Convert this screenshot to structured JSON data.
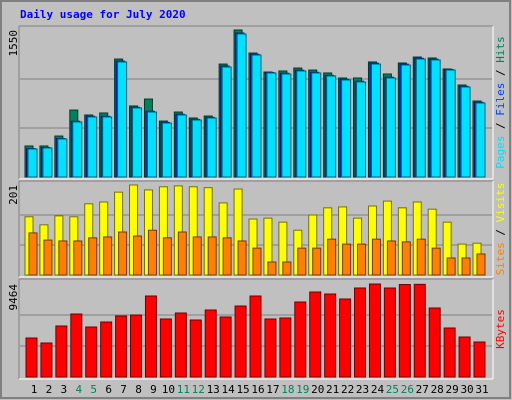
{
  "chart_data": {
    "type": "bar",
    "title": "Daily usage for July 2020",
    "categories": [
      "1",
      "2",
      "3",
      "4",
      "5",
      "6",
      "7",
      "8",
      "9",
      "10",
      "11",
      "12",
      "13",
      "14",
      "15",
      "16",
      "17",
      "18",
      "19",
      "20",
      "21",
      "22",
      "23",
      "24",
      "25",
      "26",
      "27",
      "28",
      "29",
      "30",
      "31"
    ],
    "label_color": "#000000",
    "highlight_color": "#00805c",
    "highlight_indices": [
      3,
      4,
      10,
      11,
      17,
      18,
      24,
      25
    ],
    "panels": [
      {
        "ylim": [
          0,
          1550
        ],
        "yticks": [
          1550
        ],
        "series": [
          {
            "name": "Hits",
            "color": "#00805c",
            "values": [
              327,
              327,
              432,
              706,
              654,
              675,
              1244,
              749,
              822,
              590,
              685,
              622,
              643,
              1191,
              1550,
              1307,
              1107,
              1118,
              1149,
              1128,
              1097,
              1044,
              1044,
              1213,
              1086,
              1202,
              1265,
              1255,
              1139,
              970,
              801
            ]
          },
          {
            "name": "Files",
            "color": "#0040ff",
            "values": [
              300,
              311,
              406,
              588,
              640,
              640,
              1222,
              735,
              693,
              576,
              661,
              608,
              629,
              1170,
              1518,
              1294,
              1102,
              1094,
              1126,
              1104,
              1072,
              1030,
              1010,
              1200,
              1052,
              1190,
              1252,
              1242,
              1134,
              956,
              788
            ]
          },
          {
            "name": "Pages",
            "color": "#00e0ff",
            "values": [
              295,
              306,
              401,
              580,
              633,
              633,
              1213,
              728,
              685,
              569,
              654,
              601,
              622,
              1160,
              1508,
              1286,
              1097,
              1086,
              1118,
              1097,
              1065,
              1023,
              1002,
              1191,
              1044,
              1181,
              1244,
              1234,
              1128,
              949,
              780
            ]
          }
        ]
      },
      {
        "ylim": [
          0,
          201
        ],
        "yticks": [
          201
        ],
        "series": [
          {
            "name": "Visits",
            "color": "#ffff00",
            "values": [
              130,
              112,
              132,
              130,
              159,
              163,
              185,
              201,
              190,
              197,
              199,
              197,
              195,
              161,
              192,
              125,
              127,
              118,
              100,
              134,
              150,
              152,
              127,
              154,
              165,
              150,
              163,
              147,
              118,
              69,
              71
            ]
          },
          {
            "name": "Sites",
            "color": "#ff8000",
            "values": [
              94,
              78,
              76,
              76,
              83,
              85,
              96,
              87,
              100,
              83,
              96,
              85,
              85,
              83,
              76,
              60,
              29,
              29,
              60,
              60,
              80,
              69,
              69,
              80,
              76,
              74,
              80,
              60,
              38,
              38,
              47
            ]
          }
        ]
      },
      {
        "ylim": [
          0,
          9464
        ],
        "yticks": [
          9464
        ],
        "series": [
          {
            "name": "KBytes",
            "color": "#ff0000",
            "values": [
              3969,
              3460,
              5190,
              6411,
              5088,
              5597,
              6208,
              6309,
              8243,
              5902,
              6513,
              5800,
              6818,
              6106,
              7225,
              8243,
              5902,
              6004,
              7632,
              8650,
              8446,
              7937,
              9057,
              9464,
              9057,
              9410,
              9430,
              7022,
              4986,
              4070,
              3562
            ]
          }
        ]
      }
    ]
  }
}
